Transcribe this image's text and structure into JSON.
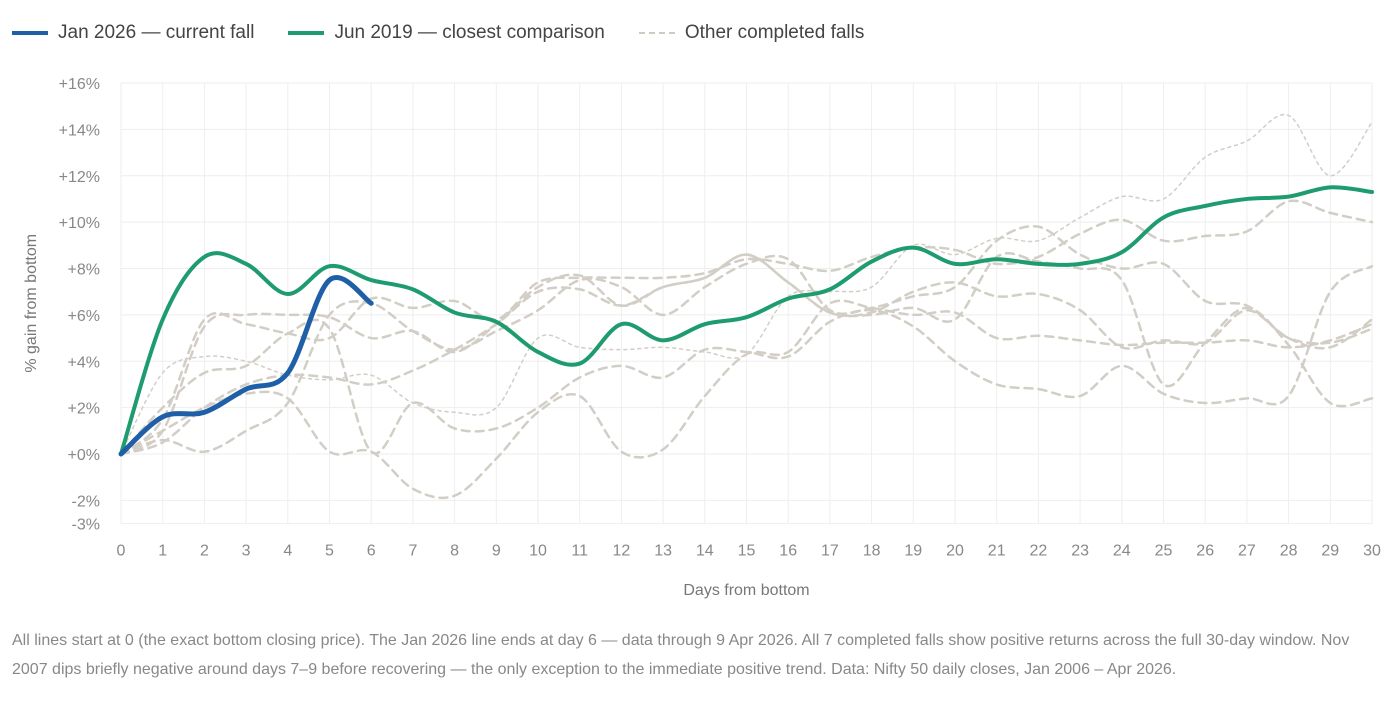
{
  "legend": [
    {
      "label": "Jan 2026 — current fall",
      "color": "#1f5fa8"
    },
    {
      "label": "Jun 2019 — closest comparison",
      "color": "#1e9b6f"
    },
    {
      "label": "Other completed falls",
      "color": "#cfcbc2"
    }
  ],
  "caption": "All lines start at 0 (the exact bottom closing price). The Jan 2026 line ends at day 6 — data through 9 Apr 2026. All 7 completed falls show positive returns across the full 30-day window. Nov 2007 dips briefly negative around days 7–9 before recovering — the only exception to the immediate positive trend. Data: Nifty 50 daily closes, Jan 2006 – Apr 2026.",
  "chart_data": {
    "type": "line",
    "xlabel": "Days from bottom",
    "ylabel": "% gain from bottom",
    "xlim": [
      0,
      30
    ],
    "ylim": [
      -3,
      16
    ],
    "yticks": [
      {
        "v": 16,
        "label": "+16%"
      },
      {
        "v": 14,
        "label": "+14%"
      },
      {
        "v": 12,
        "label": "+12%"
      },
      {
        "v": 10,
        "label": "+10%"
      },
      {
        "v": 8,
        "label": "+8%"
      },
      {
        "v": 6,
        "label": "+6%"
      },
      {
        "v": 4,
        "label": "+4%"
      },
      {
        "v": 2,
        "label": "+2%"
      },
      {
        "v": 0,
        "label": "+0%"
      },
      {
        "v": -2,
        "label": "-2%"
      },
      {
        "v": -3,
        "label": "-3%"
      }
    ],
    "xticks": [
      "0",
      "1",
      "2",
      "3",
      "4",
      "5",
      "6",
      "7",
      "8",
      "9",
      "10",
      "11",
      "12",
      "13",
      "14",
      "15",
      "16",
      "17",
      "18",
      "19",
      "20",
      "21",
      "22",
      "23",
      "24",
      "25",
      "26",
      "27",
      "28",
      "29",
      "30"
    ],
    "grid": true,
    "legend_position": "top-left",
    "series": [
      {
        "name": "Other completed falls",
        "style": "dotted",
        "values": [
          0,
          3.5,
          4.2,
          4,
          3.4,
          3.2,
          3.4,
          2.2,
          1.8,
          2,
          5,
          4.6,
          4.5,
          4.6,
          4.4,
          4.3,
          6.8,
          7,
          7.2,
          9,
          8.6,
          9.3,
          9.2,
          10.2,
          11.1,
          11,
          12.8,
          13.5,
          14.6,
          12,
          14.3
        ]
      },
      {
        "name": "Other completed falls",
        "style": "dashed",
        "values": [
          0,
          1.5,
          5.8,
          5.6,
          5.2,
          5,
          6.7,
          6.3,
          6.6,
          5.8,
          7.4,
          7.6,
          7.6,
          7.6,
          7.8,
          8.4,
          8.2,
          7.9,
          8.5,
          8.9,
          8.8,
          8.2,
          8.5,
          9.5,
          10.1,
          9.2,
          9.4,
          9.6,
          10.9,
          10.4,
          10
        ]
      },
      {
        "name": "Other completed falls",
        "style": "dashed",
        "values": [
          0,
          1,
          5.5,
          6,
          6,
          5.9,
          5,
          5.3,
          4.4,
          5.6,
          7.2,
          7.7,
          6.4,
          7.2,
          7.6,
          8.6,
          7.4,
          6.1,
          6.1,
          7,
          7.4,
          6.8,
          6.9,
          6.2,
          4.6,
          4.9,
          4.8,
          6.2,
          5,
          4.8,
          5.4
        ]
      },
      {
        "name": "Other completed falls",
        "style": "dashed",
        "values": [
          0,
          0.6,
          0.1,
          1,
          2.2,
          6,
          6.5,
          5.3,
          4.5,
          5.3,
          6.2,
          7.5,
          7.2,
          6,
          7.2,
          8.2,
          8.4,
          6.2,
          6.3,
          6.8,
          7.2,
          9.2,
          9.8,
          8.6,
          8,
          8.2,
          6.6,
          6.4,
          5,
          4.6,
          5.8
        ]
      },
      {
        "name": "Other completed falls",
        "style": "dashed",
        "values": [
          0,
          2,
          3.5,
          3.8,
          5.2,
          5.4,
          0.1,
          2.2,
          1.1,
          1.1,
          2,
          3.3,
          3.8,
          3.3,
          4.5,
          4.4,
          4.2,
          5.7,
          6.2,
          5.5,
          4,
          3,
          2.8,
          2.5,
          3.8,
          2.6,
          2.2,
          2.4,
          2.5,
          7,
          8.1
        ]
      },
      {
        "name": "Other completed falls",
        "style": "dashed",
        "values": [
          0,
          0.5,
          2,
          3,
          3.4,
          3.3,
          3,
          3.6,
          4.5,
          5.6,
          7,
          7.1,
          6.4,
          7.2,
          7.6,
          8.6,
          7.4,
          6.1,
          6,
          6.3,
          5.8,
          8.5,
          8.3,
          8,
          7.5,
          3,
          4.8,
          6.3,
          4.7,
          2.2,
          2.4
        ]
      },
      {
        "name": "Other completed falls",
        "style": "dashed",
        "values": [
          0,
          1,
          2,
          2.6,
          2.4,
          0.1,
          0.1,
          -1.5,
          -1.8,
          -0.2,
          1.8,
          2.5,
          0.1,
          0.2,
          2.5,
          4.3,
          4.4,
          6.5,
          6.3,
          6,
          6.1,
          5,
          5.1,
          4.9,
          4.7,
          4.8,
          4.8,
          4.9,
          4.6,
          4.9,
          5.6
        ]
      },
      {
        "name": "Jun 2019 — closest comparison",
        "style": "solid",
        "color": "#1e9b6f",
        "values": [
          0,
          5.8,
          8.5,
          8.2,
          6.9,
          8.1,
          7.5,
          7.1,
          6.1,
          5.7,
          4.4,
          3.9,
          5.6,
          4.9,
          5.6,
          5.9,
          6.7,
          7.1,
          8.3,
          8.9,
          8.2,
          8.4,
          8.2,
          8.2,
          8.7,
          10.2,
          10.7,
          11,
          11.1,
          11.5,
          11.3
        ]
      },
      {
        "name": "Jan 2026 — current fall",
        "style": "solid",
        "color": "#1f5fa8",
        "values": [
          0,
          1.6,
          1.8,
          2.8,
          3.5,
          7.5,
          6.5
        ]
      }
    ]
  }
}
